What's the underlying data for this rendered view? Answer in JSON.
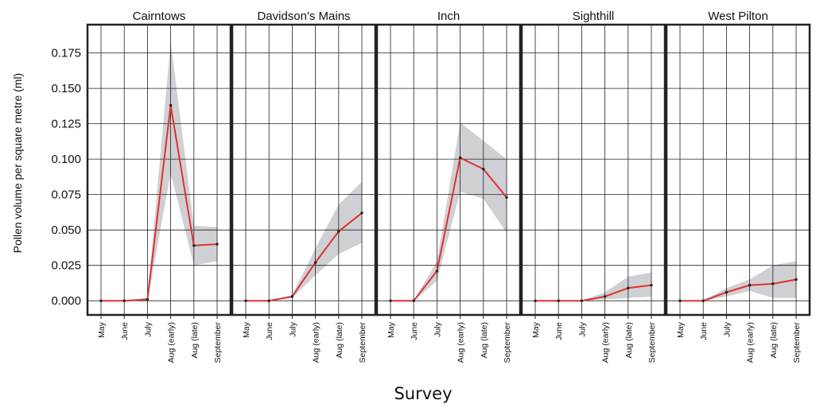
{
  "chart_data": {
    "type": "line",
    "xlabel": "Survey",
    "ylabel": "Pollen volume per square metre (ml)",
    "categories": [
      "May",
      "June",
      "July",
      "Aug (early)",
      "Aug (late)",
      "September"
    ],
    "yticks": [
      "0.000",
      "0.025",
      "0.050",
      "0.075",
      "0.100",
      "0.125",
      "0.150",
      "0.175"
    ],
    "ylim": [
      -0.01,
      0.195
    ],
    "grid": true,
    "colors": {
      "line": "#e03030",
      "band": "#cfd0d3",
      "point": "#222222",
      "frame": "#222222",
      "grid": "#222222"
    },
    "panels": [
      {
        "name": "Cairntows",
        "values": [
          0.0,
          0.0,
          0.001,
          0.138,
          0.039,
          0.04
        ],
        "lower": [
          0.0,
          0.0,
          0.0,
          0.09,
          0.025,
          0.028
        ],
        "upper": [
          0.0,
          0.0,
          0.002,
          0.183,
          0.053,
          0.052
        ]
      },
      {
        "name": "Davidson's Mains",
        "values": [
          0.0,
          0.0,
          0.003,
          0.027,
          0.049,
          0.062
        ],
        "lower": [
          0.0,
          0.0,
          0.002,
          0.018,
          0.033,
          0.041
        ],
        "upper": [
          0.0,
          0.0,
          0.004,
          0.037,
          0.068,
          0.084
        ]
      },
      {
        "name": "Inch",
        "values": [
          0.0,
          0.0,
          0.021,
          0.101,
          0.093,
          0.073
        ],
        "lower": [
          0.0,
          0.0,
          0.014,
          0.077,
          0.072,
          0.048
        ],
        "upper": [
          0.0,
          0.0,
          0.028,
          0.126,
          0.113,
          0.1
        ]
      },
      {
        "name": "Sighthill",
        "values": [
          0.0,
          0.0,
          0.0,
          0.003,
          0.009,
          0.011
        ],
        "lower": [
          0.0,
          0.0,
          0.0,
          0.001,
          0.002,
          0.003
        ],
        "upper": [
          0.0,
          0.0,
          0.0,
          0.006,
          0.017,
          0.02
        ]
      },
      {
        "name": "West Pilton",
        "values": [
          0.0,
          0.0,
          0.006,
          0.011,
          0.012,
          0.015
        ],
        "lower": [
          0.0,
          0.0,
          0.003,
          0.007,
          0.002,
          0.002
        ],
        "upper": [
          0.0,
          0.0,
          0.009,
          0.015,
          0.025,
          0.028
        ]
      }
    ]
  }
}
